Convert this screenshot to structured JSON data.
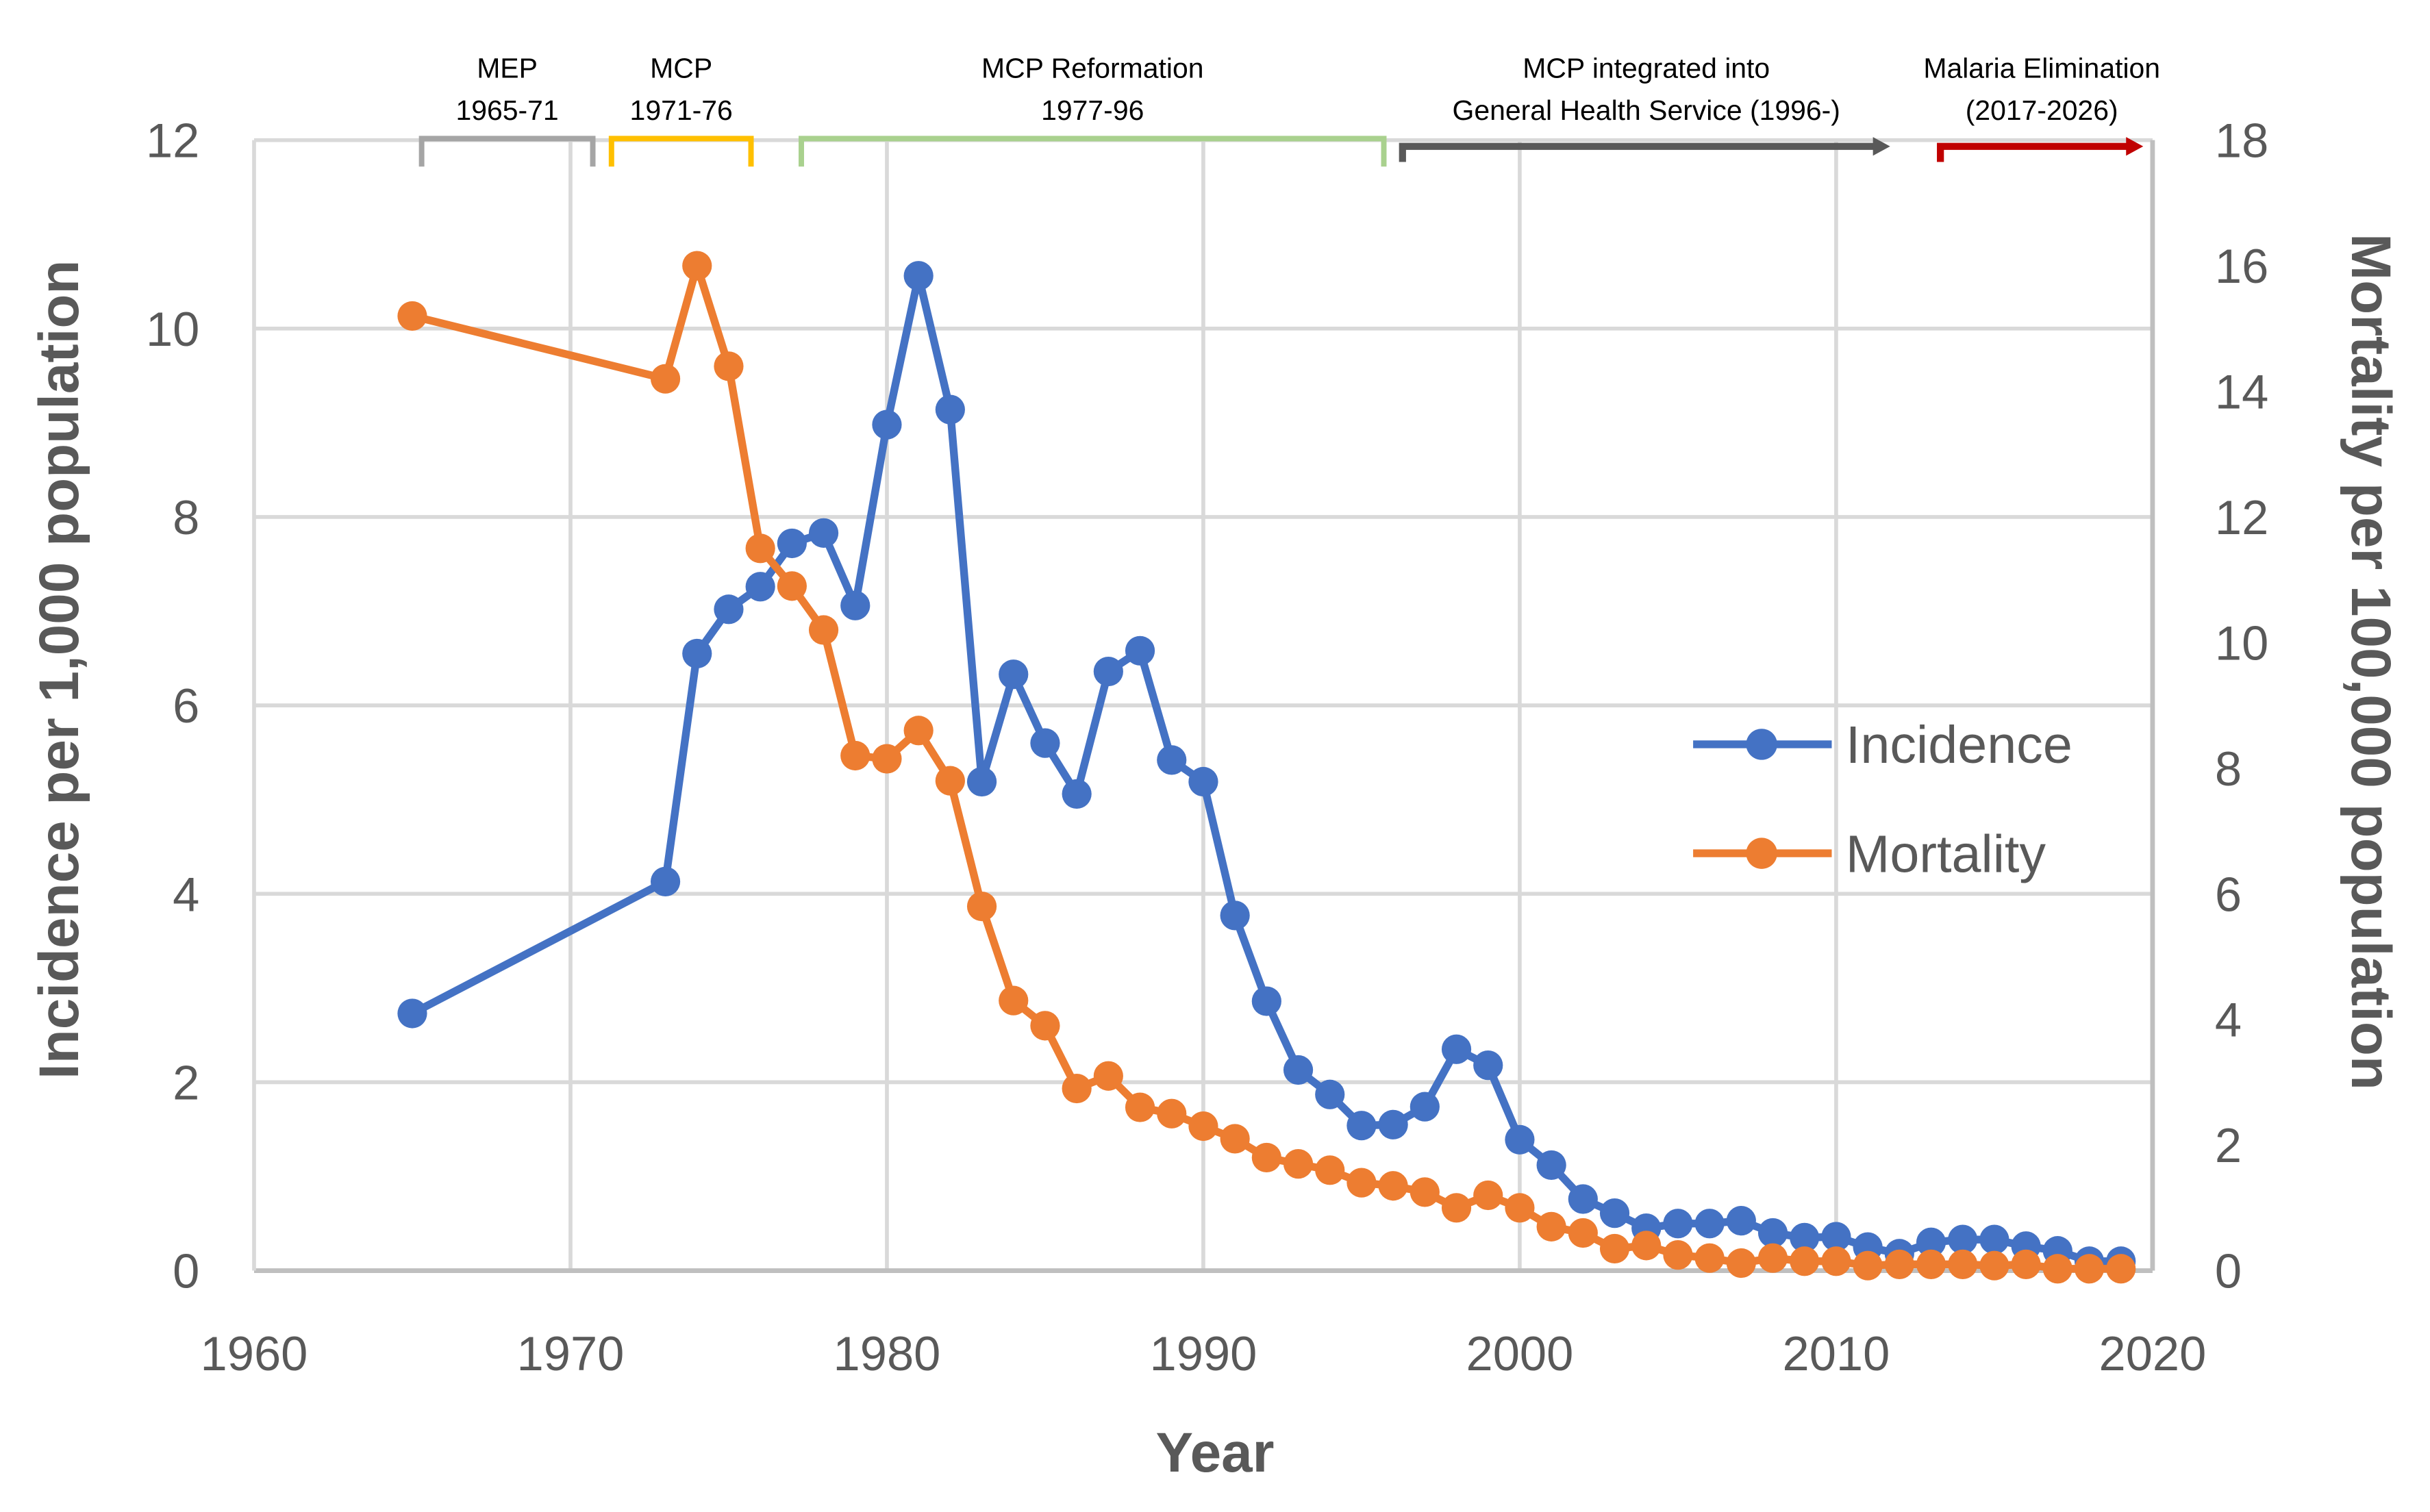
{
  "chart_data": {
    "type": "line",
    "title": "",
    "xlabel": "Year",
    "ylabel": "Incidence per 1,000 population",
    "y2label": "Mortality per 100,000 population",
    "xlim": [
      1960,
      2020
    ],
    "ylim": [
      0,
      12
    ],
    "y2lim": [
      0,
      18
    ],
    "xticks": [
      1960,
      1970,
      1980,
      1990,
      2000,
      2010,
      2020
    ],
    "yticks": [
      0,
      2,
      4,
      6,
      8,
      10,
      12
    ],
    "y2ticks": [
      0,
      2,
      4,
      6,
      8,
      10,
      12,
      14,
      16,
      18
    ],
    "grid": true,
    "legend_position": "center-right",
    "x": [
      1965,
      1973,
      1974,
      1975,
      1976,
      1977,
      1978,
      1979,
      1980,
      1981,
      1982,
      1983,
      1984,
      1985,
      1986,
      1987,
      1988,
      1989,
      1990,
      1991,
      1992,
      1993,
      1994,
      1995,
      1996,
      1997,
      1998,
      1999,
      2000,
      2001,
      2002,
      2003,
      2004,
      2005,
      2006,
      2007,
      2008,
      2009,
      2010,
      2011,
      2012,
      2013,
      2014,
      2015,
      2016,
      2017,
      2018,
      2019
    ],
    "series": [
      {
        "name": "Incidence",
        "axis": "left",
        "color": "#4472C4",
        "values": [
          2.73,
          4.13,
          6.55,
          7.02,
          7.26,
          7.72,
          7.83,
          7.06,
          8.98,
          10.56,
          9.14,
          5.19,
          6.33,
          5.6,
          5.06,
          6.36,
          6.58,
          5.42,
          5.19,
          3.77,
          2.86,
          2.13,
          1.87,
          1.54,
          1.55,
          1.74,
          2.35,
          2.18,
          1.39,
          1.12,
          0.76,
          0.61,
          0.45,
          0.5,
          0.5,
          0.53,
          0.4,
          0.35,
          0.36,
          0.25,
          0.18,
          0.3,
          0.33,
          0.33,
          0.26,
          0.21,
          0.1,
          0.1
        ]
      },
      {
        "name": "Mortality",
        "axis": "right",
        "color": "#ED7D31",
        "values": [
          15.2,
          14.2,
          16.0,
          14.4,
          11.5,
          10.9,
          10.2,
          8.2,
          8.15,
          8.6,
          7.8,
          5.8,
          4.3,
          3.9,
          2.9,
          3.1,
          2.6,
          2.5,
          2.3,
          2.1,
          1.8,
          1.7,
          1.6,
          1.4,
          1.35,
          1.25,
          1.0,
          1.2,
          1.0,
          0.7,
          0.6,
          0.35,
          0.4,
          0.25,
          0.2,
          0.12,
          0.2,
          0.15,
          0.15,
          0.08,
          0.1,
          0.1,
          0.1,
          0.08,
          0.1,
          0.03,
          0.03,
          0.03
        ]
      }
    ],
    "annotations": [
      {
        "line1": "MEP",
        "line2": "1965-71",
        "start": 1965,
        "end": 1971,
        "style": "bracket",
        "color": "#A5A5A5"
      },
      {
        "line1": "MCP",
        "line2": "1971-76",
        "start": 1971,
        "end": 1976,
        "style": "bracket",
        "color": "#FFC000"
      },
      {
        "line1": "MCP Reformation",
        "line2": "1977-96",
        "start": 1977,
        "end": 1996,
        "style": "bracket",
        "color": "#A9D18E"
      },
      {
        "line1": "MCP integrated into",
        "line2": "General Health Service (1996-)",
        "start": 1996,
        "end": 2012,
        "style": "arrow",
        "color": "#595959"
      },
      {
        "line1": "Malaria Elimination",
        "line2": "(2017-2026)",
        "start": 2013,
        "end": 2020,
        "style": "arrow",
        "color": "#C00000"
      }
    ]
  }
}
